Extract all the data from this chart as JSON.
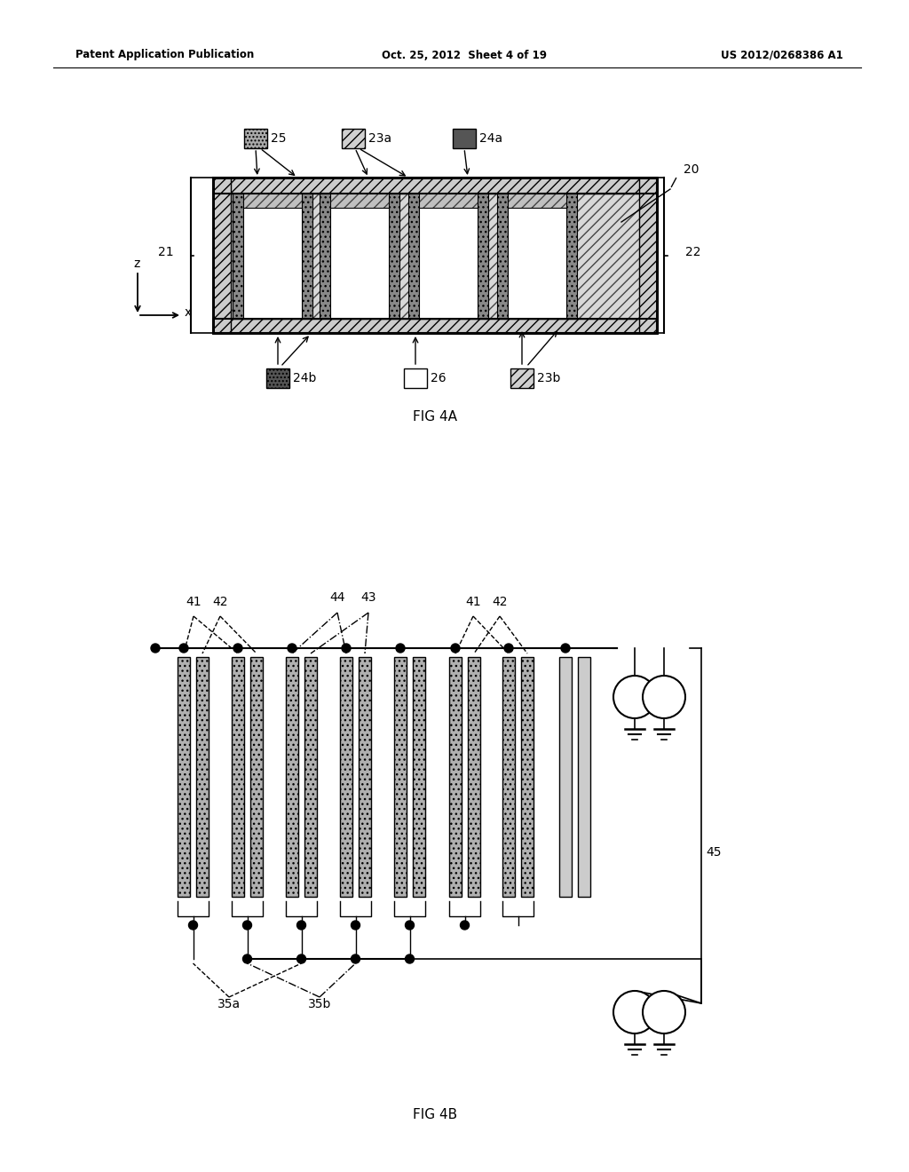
{
  "header_left": "Patent Application Publication",
  "header_mid": "Oct. 25, 2012  Sheet 4 of 19",
  "header_right": "US 2012/0268386 A1",
  "fig4a_label": "FIG 4A",
  "fig4b_label": "FIG 4B",
  "bg_color": "#ffffff"
}
